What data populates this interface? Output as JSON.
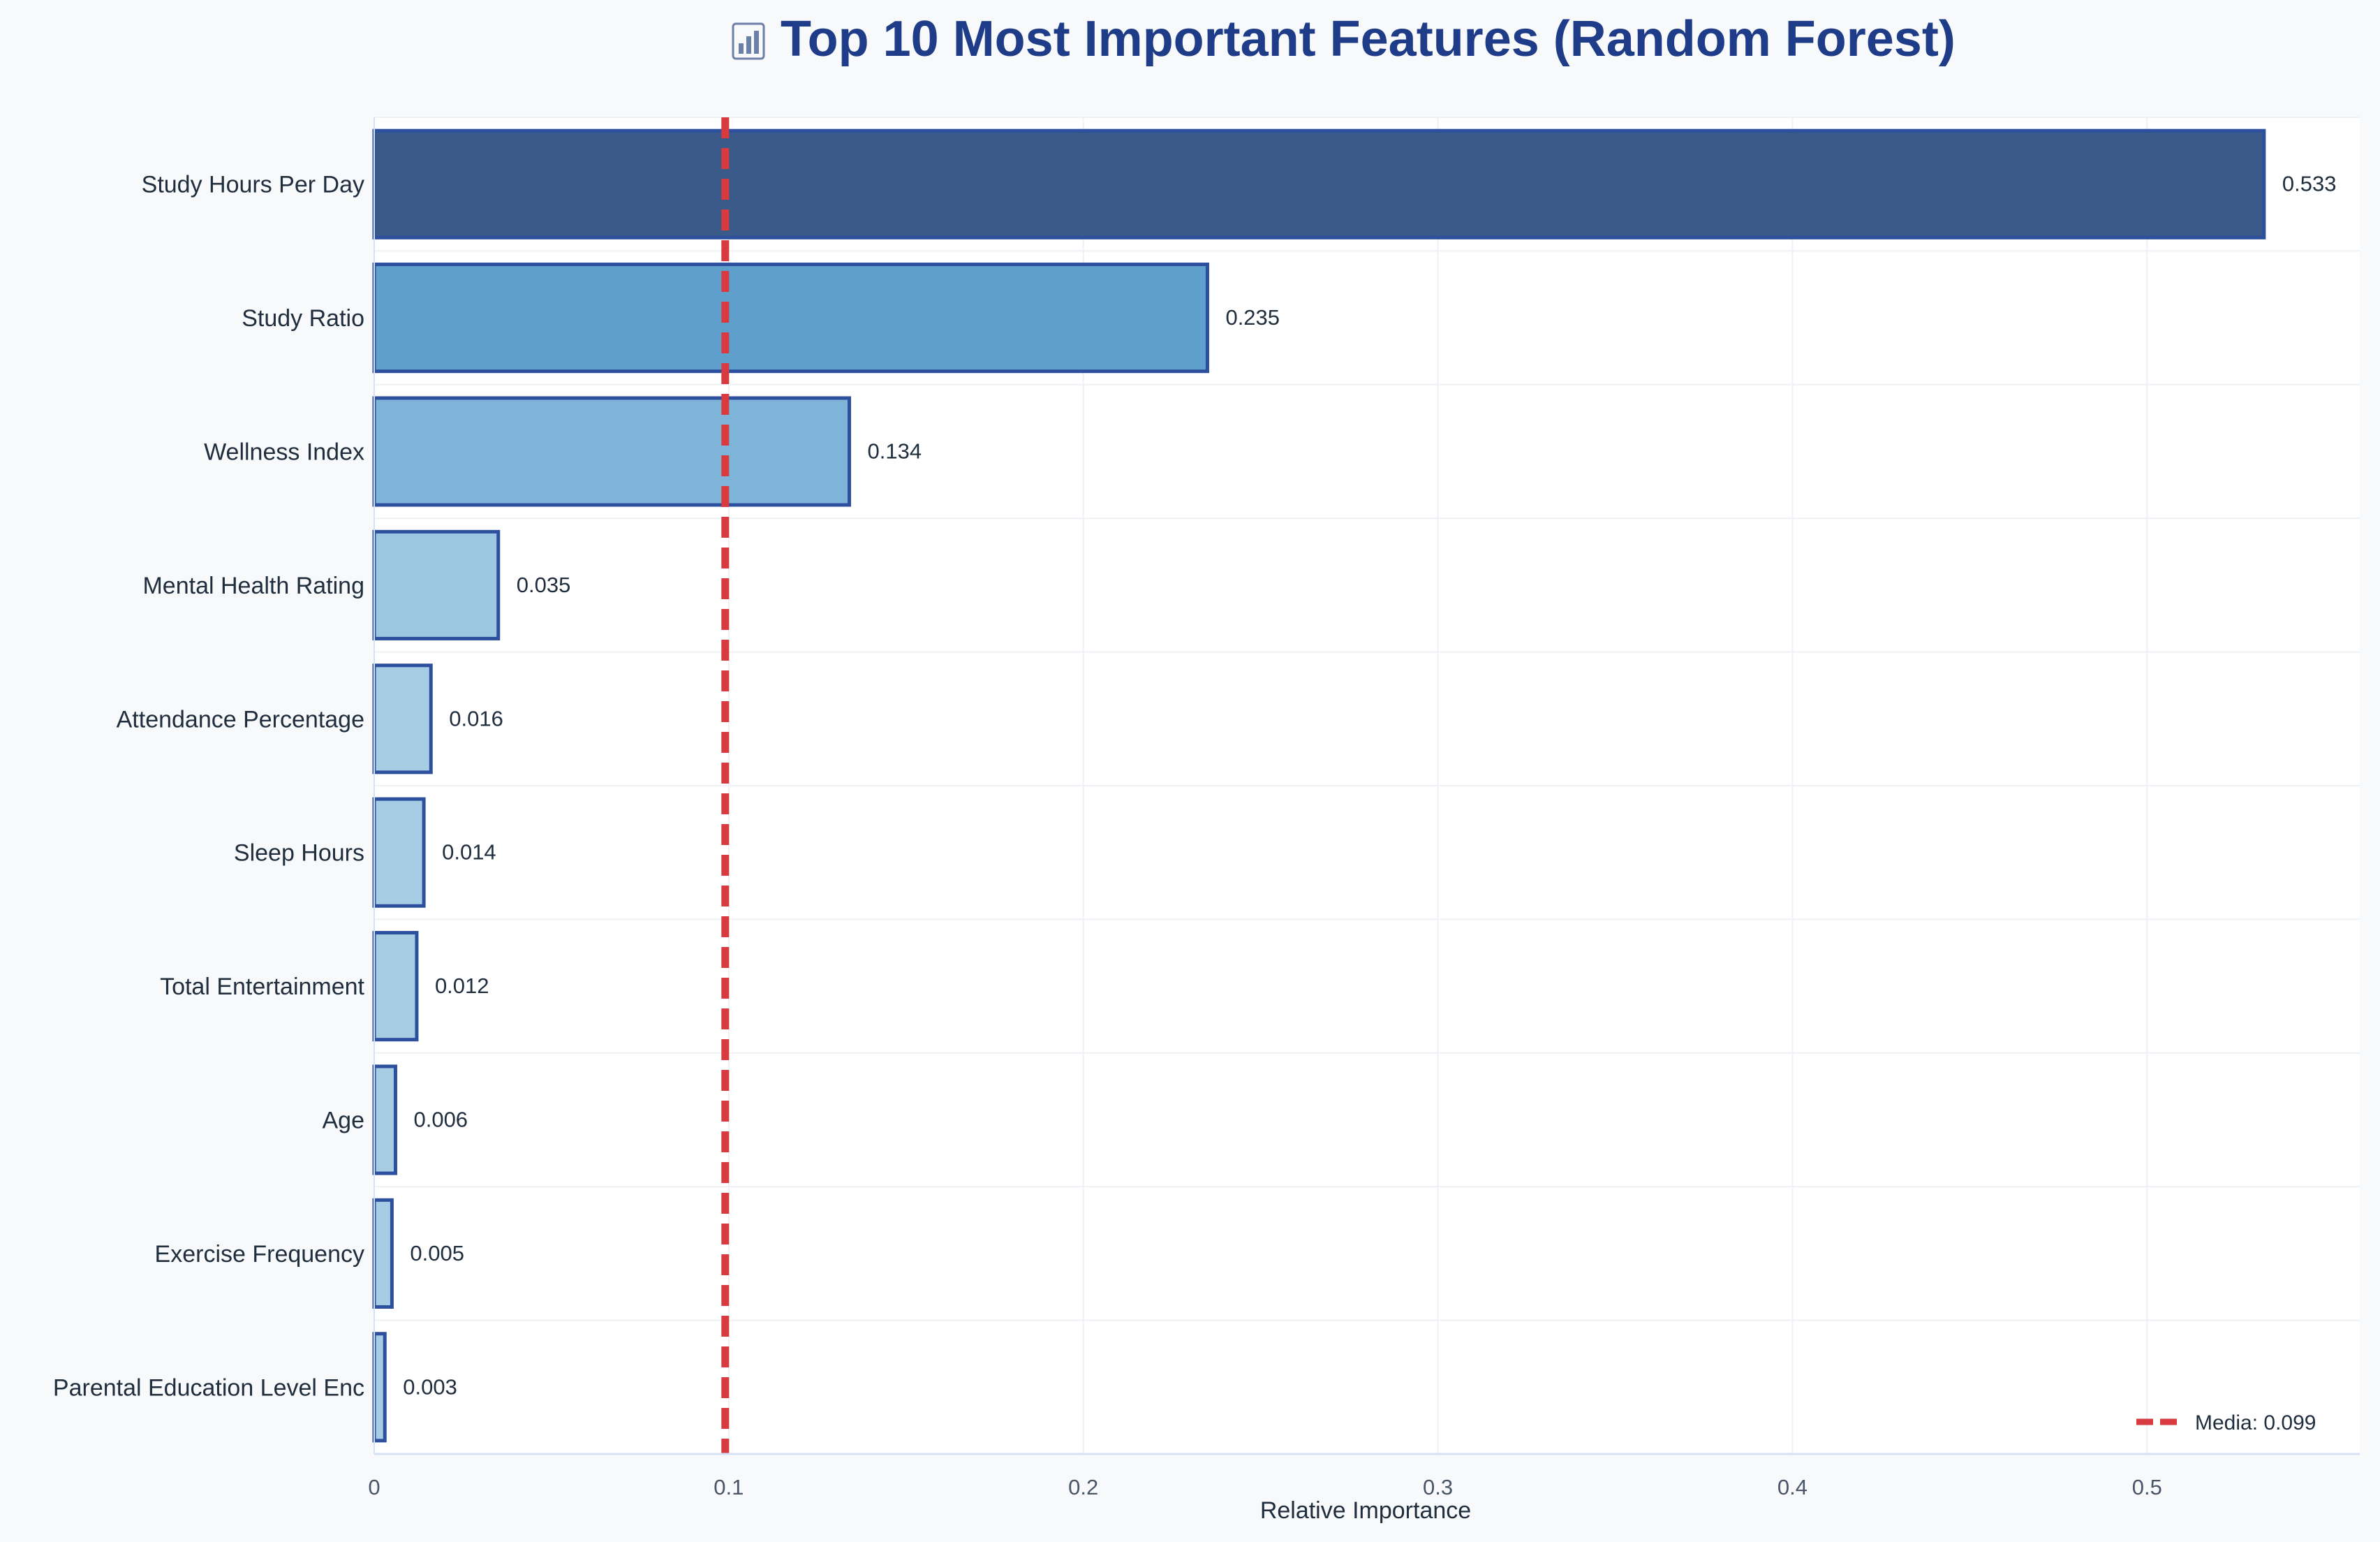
{
  "title": "Top 10 Most Important Features (Random Forest)",
  "title_icon": "chart-emoji-icon",
  "colors": {
    "page_bg": "#f7f9fb",
    "plot_bg": "#ffffff",
    "title": "#1f3c88",
    "bar_outline": "#2c4f9e",
    "top_bar": "#3a5a8a",
    "second_bar": "#5f9fcb",
    "third_bar": "#7fb4d9",
    "fourth_bar": "#9bc7e0",
    "small_bars": "#a6cde4",
    "mean_line": "#d93a3f",
    "grid": "#eef1f5",
    "axis_line": "#d6e2f3",
    "text": "#1f2d3d",
    "tick_text": "#4a5568"
  },
  "chart_data": {
    "type": "bar",
    "orientation": "horizontal",
    "title": "Top 10 Most Important Features (Random Forest)",
    "xlabel": "Relative Importance",
    "ylabel": "",
    "xlim": [
      0,
      0.56
    ],
    "xticks": [
      0,
      0.1,
      0.2,
      0.3,
      0.4,
      0.5
    ],
    "xtick_labels": [
      "0",
      "0.1",
      "0.2",
      "0.3",
      "0.4",
      "0.5"
    ],
    "categories": [
      "Study Hours Per Day",
      "Study Ratio",
      "Wellness Index",
      "Mental Health Rating",
      "Attendance Percentage",
      "Sleep Hours",
      "Total Entertainment",
      "Age",
      "Exercise Frequency",
      "Parental Education Level Enc"
    ],
    "values": [
      0.533,
      0.235,
      0.134,
      0.035,
      0.016,
      0.014,
      0.012,
      0.006,
      0.005,
      0.003
    ],
    "value_labels": [
      "0.533",
      "0.235",
      "0.134",
      "0.035",
      "0.016",
      "0.014",
      "0.012",
      "0.006",
      "0.005",
      "0.003"
    ],
    "mean_line": {
      "value": 0.099,
      "label": "Media: 0.099",
      "style": "dashed"
    },
    "legend": {
      "placement": "bottom-right",
      "entries": [
        "Media: 0.099"
      ]
    },
    "grid": true
  }
}
